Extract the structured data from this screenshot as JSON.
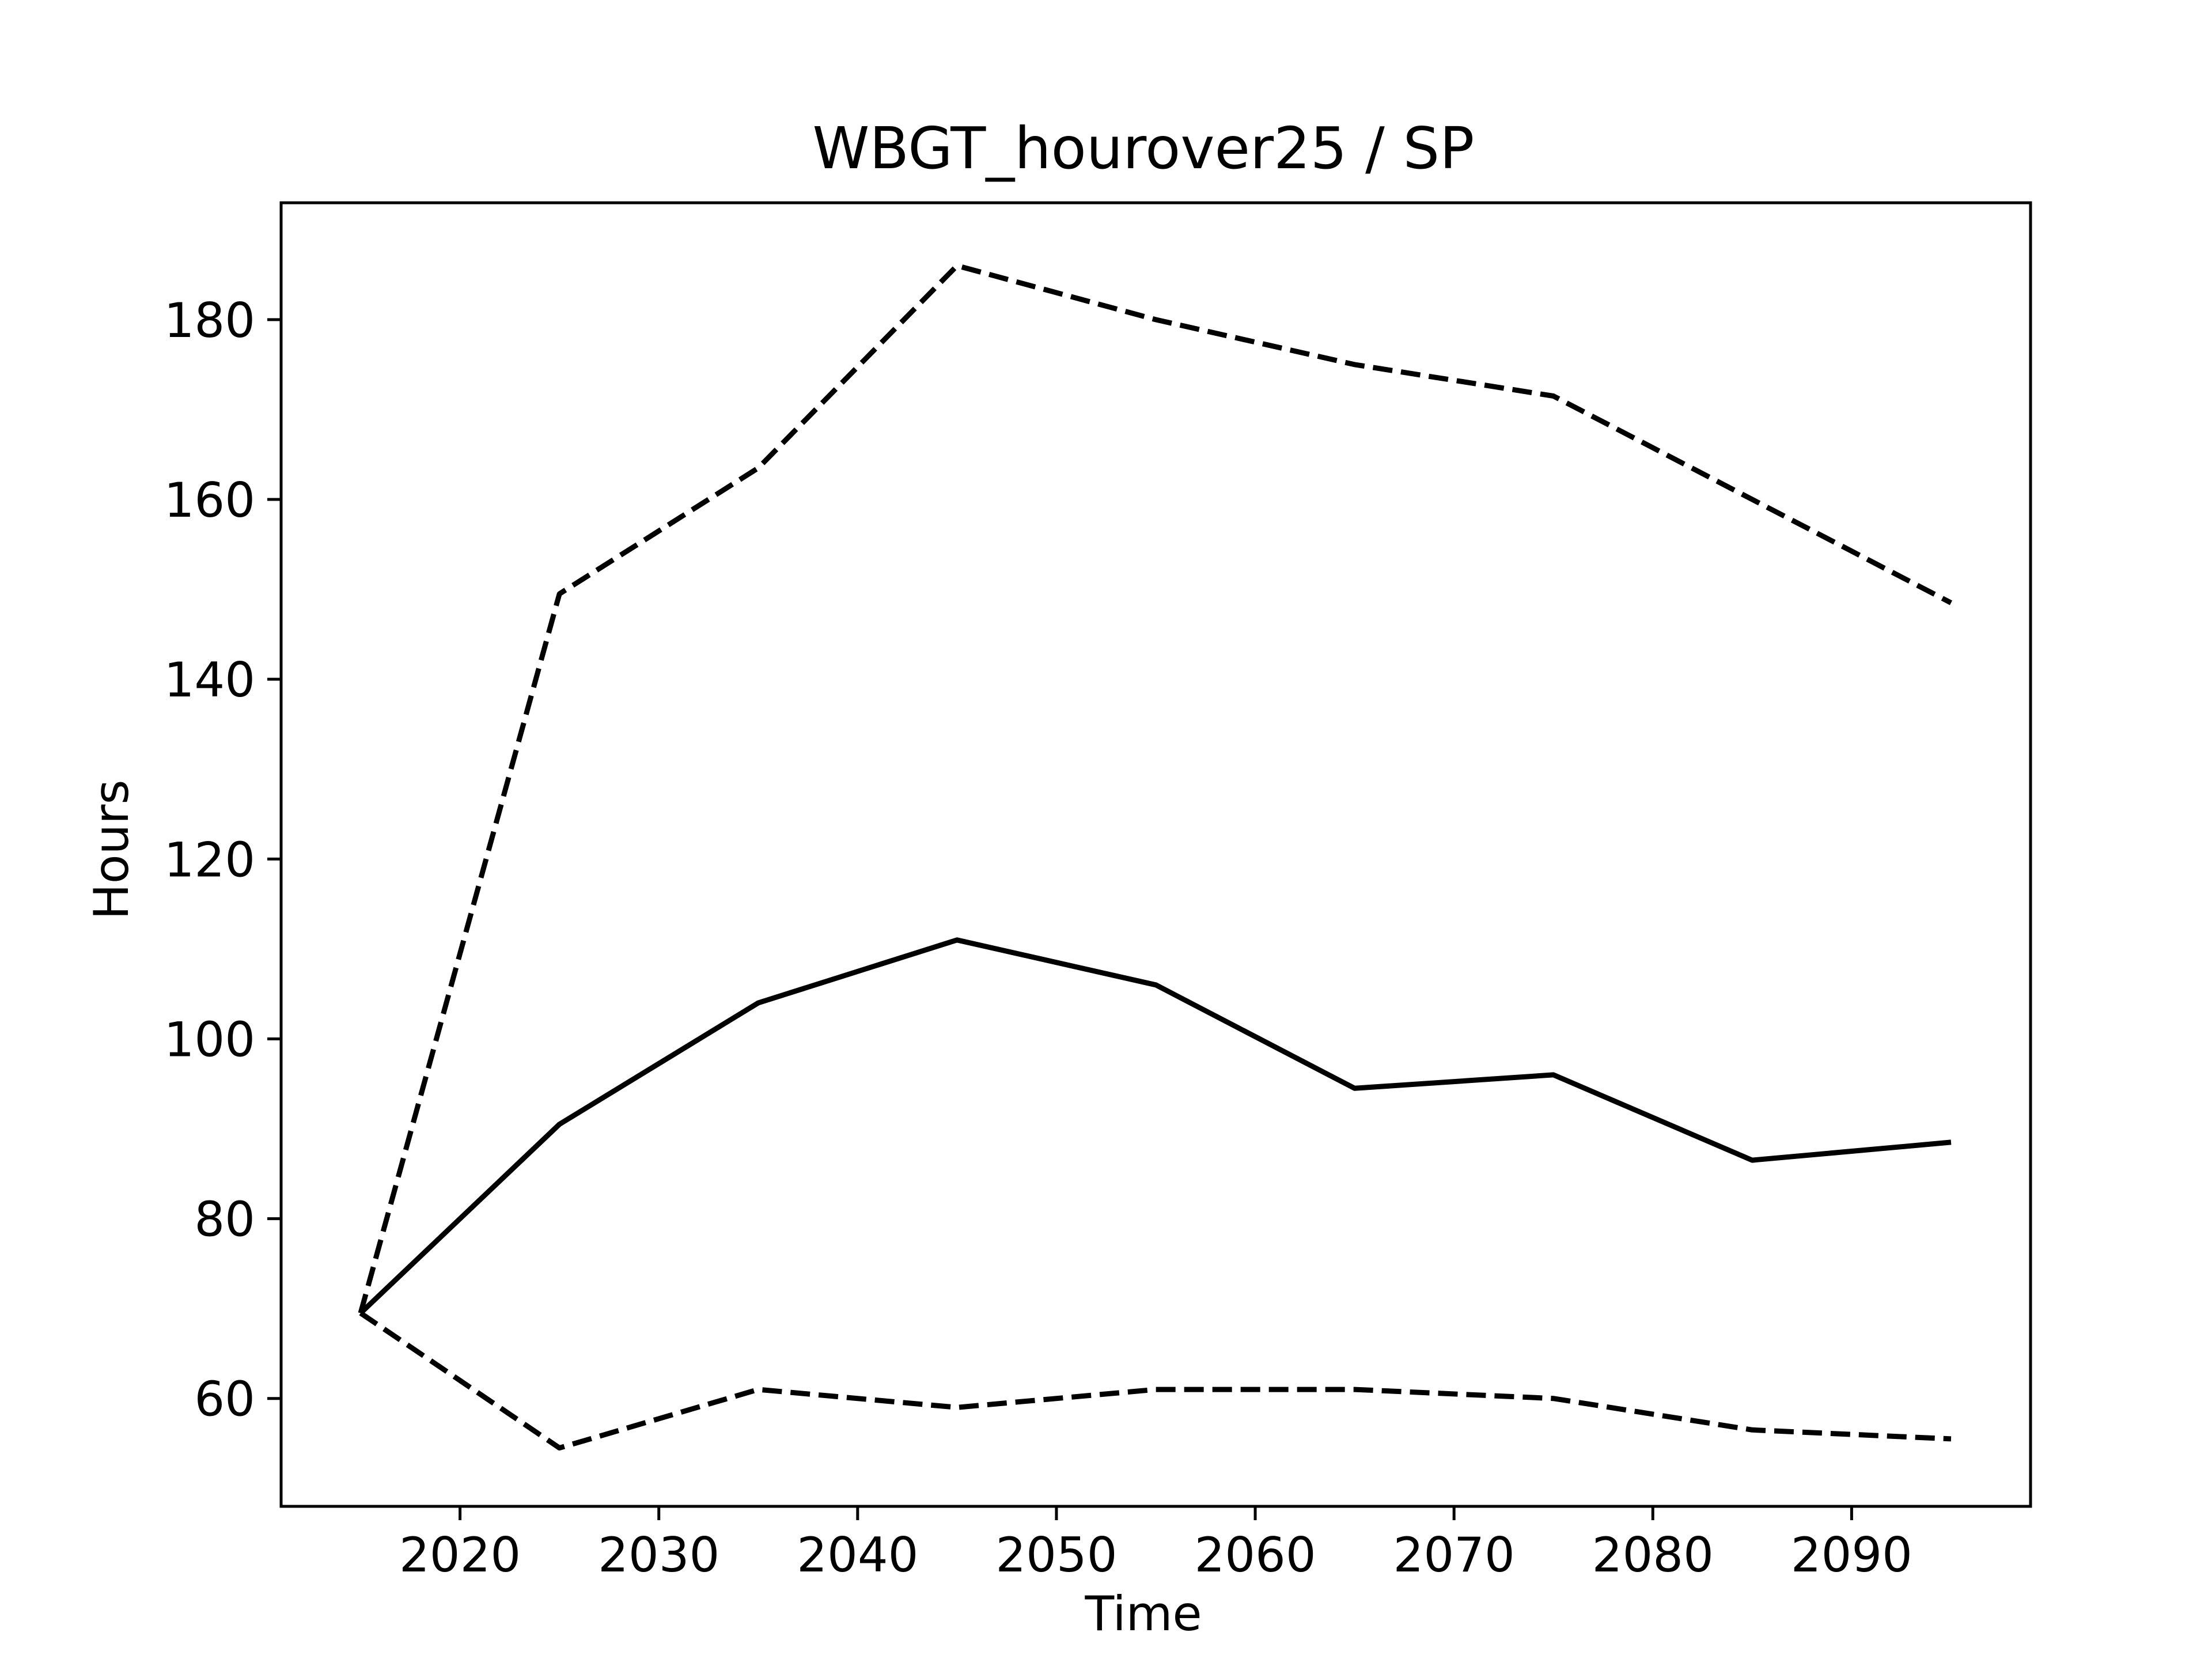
{
  "chart_data": {
    "type": "line",
    "title": "WBGT_hourover25 / SP",
    "xlabel": "Time",
    "ylabel": "Hours",
    "xlim": [
      2011,
      2099
    ],
    "ylim": [
      48,
      193
    ],
    "xticks": [
      2020,
      2030,
      2040,
      2050,
      2060,
      2070,
      2080,
      2090
    ],
    "yticks": [
      60,
      80,
      100,
      120,
      140,
      160,
      180
    ],
    "grid": false,
    "legend": "none",
    "x": [
      2015,
      2025,
      2035,
      2045,
      2055,
      2065,
      2075,
      2085,
      2095
    ],
    "series": [
      {
        "style": "dashed",
        "color": "#000000",
        "values": [
          69.5,
          149.5,
          163.5,
          186,
          180,
          175,
          171.5,
          160,
          148.5
        ]
      },
      {
        "style": "solid",
        "color": "#000000",
        "values": [
          69.5,
          90.5,
          104,
          111,
          106,
          94.5,
          96,
          86.5,
          88.5
        ]
      },
      {
        "style": "dashed",
        "color": "#000000",
        "values": [
          69.5,
          54.5,
          61,
          59,
          61,
          61,
          60,
          56.5,
          55.5
        ]
      }
    ]
  }
}
